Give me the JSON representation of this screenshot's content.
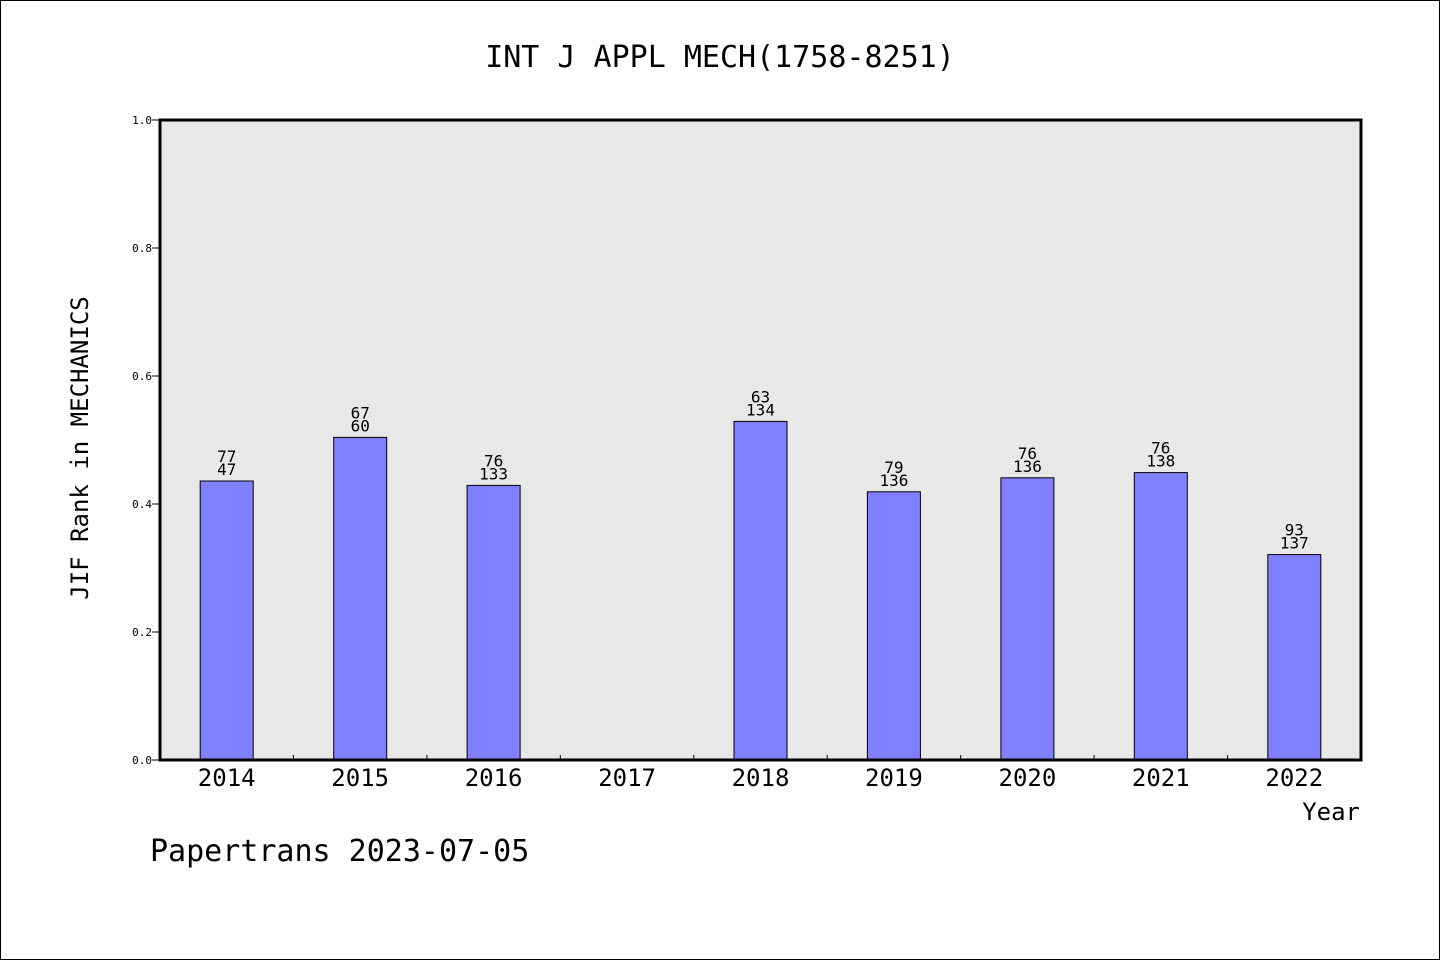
{
  "chart_data": {
    "type": "bar",
    "title": "INT J APPL MECH(1758-8251)",
    "xlabel": "Year",
    "ylabel": "JIF Rank in MECHANICS",
    "ylim": [
      0,
      1.0
    ],
    "yticks": [
      "0.0",
      "0.2",
      "0.4",
      "0.6",
      "0.8",
      "1.0"
    ],
    "grid": false,
    "categories": [
      "2014",
      "2015",
      "2016",
      "2017",
      "2018",
      "2019",
      "2020",
      "2021",
      "2022"
    ],
    "values": [
      0.436,
      0.504,
      0.429,
      null,
      0.529,
      0.419,
      0.441,
      0.449,
      0.321
    ],
    "rank_labels": [
      "77",
      "67",
      "76",
      "",
      "63",
      "79",
      "76",
      "76",
      "93"
    ],
    "total_labels": [
      "47",
      "60",
      "133",
      "",
      "134",
      "136",
      "136",
      "138",
      "137"
    ],
    "bar_color": "#8080ff",
    "plot_background": "#e8e8e8"
  },
  "footer": "Papertrans 2023-07-05"
}
